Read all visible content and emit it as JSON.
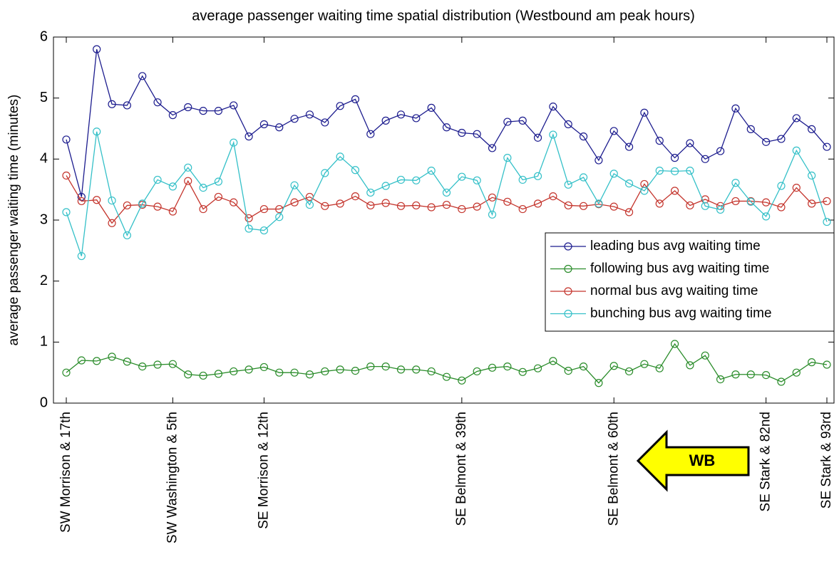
{
  "chart_data": {
    "type": "line",
    "title": "average passenger waiting time spatial distribution (Westbound am peak hours)",
    "y_label": "average passenger waiting time (minutes)",
    "categories": [
      "SW Morrison & 17th",
      null,
      null,
      null,
      null,
      null,
      null,
      "SW Washington & 5th",
      null,
      null,
      null,
      null,
      null,
      "SE Morrison & 12th",
      null,
      null,
      null,
      null,
      null,
      null,
      null,
      null,
      null,
      null,
      null,
      null,
      "SE Belmont & 39th",
      null,
      null,
      null,
      null,
      null,
      null,
      null,
      null,
      null,
      "SE Belmont & 60th",
      null,
      null,
      null,
      null,
      null,
      null,
      null,
      null,
      null,
      "SE Stark & 82nd",
      null,
      null,
      null,
      "SE Stark & 93rd"
    ],
    "series": [
      {
        "name": "leading bus avg waiting time",
        "color": "#1c1c8e",
        "values": [
          4.32,
          3.38,
          5.8,
          4.9,
          4.88,
          5.36,
          4.93,
          4.72,
          4.85,
          4.79,
          4.79,
          4.88,
          4.37,
          4.57,
          4.52,
          4.66,
          4.73,
          4.6,
          4.87,
          4.98,
          4.41,
          4.63,
          4.73,
          4.67,
          4.84,
          4.52,
          4.43,
          4.41,
          4.18,
          4.61,
          4.63,
          4.35,
          4.86,
          4.57,
          4.37,
          3.98,
          4.46,
          4.2,
          4.76,
          4.3,
          4.02,
          4.26,
          4.0,
          4.13,
          4.83,
          4.49,
          4.28,
          4.33,
          4.67,
          4.49,
          4.2
        ]
      },
      {
        "name": "following bus avg waiting time",
        "color": "#2a8c2a",
        "values": [
          0.5,
          0.7,
          0.69,
          0.76,
          0.68,
          0.6,
          0.63,
          0.64,
          0.47,
          0.45,
          0.48,
          0.52,
          0.55,
          0.59,
          0.5,
          0.5,
          0.47,
          0.52,
          0.55,
          0.53,
          0.6,
          0.6,
          0.55,
          0.55,
          0.52,
          0.43,
          0.37,
          0.52,
          0.58,
          0.6,
          0.51,
          0.57,
          0.69,
          0.53,
          0.6,
          0.33,
          0.61,
          0.52,
          0.64,
          0.57,
          0.97,
          0.62,
          0.78,
          0.39,
          0.47,
          0.47,
          0.46,
          0.35,
          0.5,
          0.67,
          0.63
        ]
      },
      {
        "name": "normal bus avg waiting time",
        "color": "#c4342c",
        "values": [
          3.73,
          3.31,
          3.33,
          2.95,
          3.24,
          3.25,
          3.22,
          3.14,
          3.64,
          3.18,
          3.38,
          3.29,
          3.03,
          3.18,
          3.18,
          3.29,
          3.38,
          3.23,
          3.27,
          3.39,
          3.24,
          3.28,
          3.23,
          3.24,
          3.21,
          3.25,
          3.18,
          3.22,
          3.37,
          3.3,
          3.18,
          3.27,
          3.39,
          3.24,
          3.23,
          3.26,
          3.22,
          3.13,
          3.59,
          3.27,
          3.48,
          3.24,
          3.34,
          3.23,
          3.31,
          3.31,
          3.29,
          3.21,
          3.53,
          3.27,
          3.31
        ]
      },
      {
        "name": "bunching bus avg waiting time",
        "color": "#34c0c8",
        "values": [
          3.13,
          2.41,
          4.45,
          3.32,
          2.75,
          3.27,
          3.66,
          3.55,
          3.86,
          3.53,
          3.63,
          4.27,
          2.86,
          2.83,
          3.05,
          3.57,
          3.25,
          3.77,
          4.04,
          3.82,
          3.45,
          3.56,
          3.66,
          3.65,
          3.81,
          3.45,
          3.71,
          3.65,
          3.09,
          4.02,
          3.66,
          3.72,
          4.4,
          3.58,
          3.7,
          3.27,
          3.76,
          3.6,
          3.48,
          3.81,
          3.8,
          3.81,
          3.23,
          3.17,
          3.61,
          3.3,
          3.06,
          3.56,
          4.14,
          3.73,
          2.97
        ]
      }
    ],
    "ylim": [
      0,
      6
    ],
    "yticks": [
      0,
      1,
      2,
      3,
      4,
      5,
      6
    ],
    "legend": "right",
    "markers": true,
    "annotation": "WB"
  }
}
